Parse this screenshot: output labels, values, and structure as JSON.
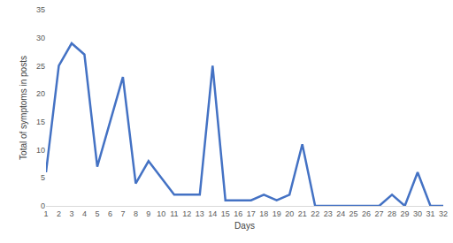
{
  "chart_data": {
    "type": "line",
    "x_label": "Days",
    "y_label": "Total of symptoms in posts",
    "categories": [
      "1",
      "2",
      "3",
      "4",
      "5",
      "6",
      "7",
      "8",
      "9",
      "10",
      "11",
      "12",
      "13",
      "14",
      "15",
      "16",
      "17",
      "18",
      "19",
      "20",
      "21",
      "22",
      "23",
      "24",
      "25",
      "26",
      "27",
      "28",
      "29",
      "30",
      "31",
      "32"
    ],
    "values": [
      6,
      25,
      29,
      27,
      7,
      15,
      23,
      4,
      8,
      5,
      2,
      2,
      2,
      25,
      1,
      1,
      1,
      2,
      1,
      2,
      11,
      0,
      0,
      0,
      0,
      0,
      0,
      2,
      0,
      6,
      0,
      0
    ],
    "color": "#4472c4",
    "ylim": [
      0,
      35
    ],
    "yticks": [
      0,
      5,
      10,
      15,
      20,
      25,
      30,
      35
    ],
    "grid": false
  }
}
